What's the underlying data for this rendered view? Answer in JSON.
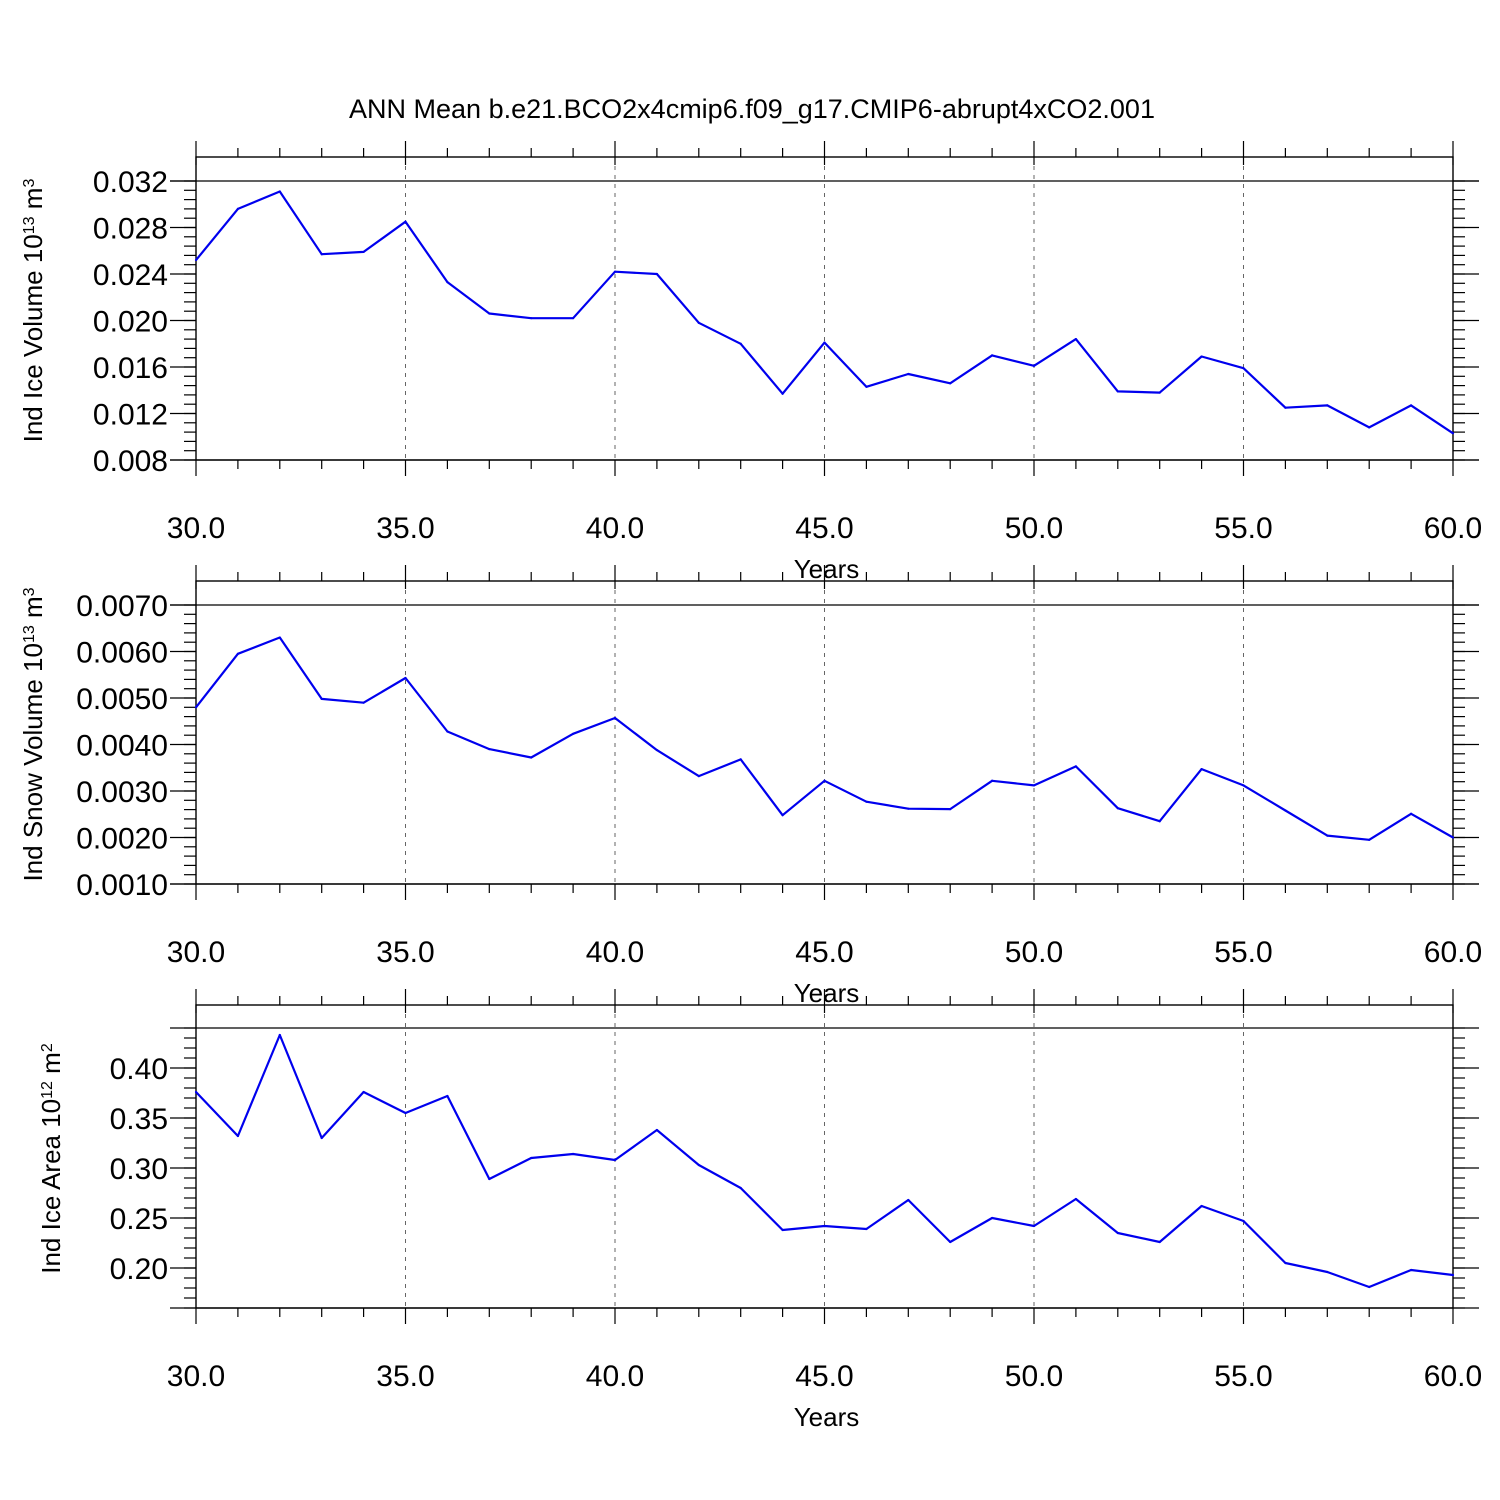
{
  "title": "ANN Mean b.e21.BCO2x4cmip6.f09_g17.CMIP6-abrupt4xCO2.001",
  "line_color": "#0000ee",
  "chart_data": [
    {
      "type": "line",
      "ylabel": "Ind Ice Volume",
      "ylabel_unit_base": "10",
      "ylabel_unit_exp": "13",
      "ylabel_unit_rest": " m",
      "ylabel_unit_exp2": "3",
      "xlabel": "Years",
      "xlim": [
        30,
        60
      ],
      "ylim": [
        0.008,
        0.032
      ],
      "xticks": [
        30,
        35,
        40,
        45,
        50,
        55,
        60
      ],
      "xtick_labels": [
        "30.0",
        "35.0",
        "40.0",
        "45.0",
        "50.0",
        "55.0",
        "60.0"
      ],
      "yticks": [
        0.008,
        0.012,
        0.016,
        0.02,
        0.024,
        0.028,
        0.032
      ],
      "ytick_labels": [
        "0.008",
        "0.012",
        "0.016",
        "0.020",
        "0.024",
        "0.028",
        "0.032"
      ],
      "grid": "vertical-dashed",
      "x": [
        30,
        31,
        32,
        33,
        34,
        35,
        36,
        37,
        38,
        39,
        40,
        41,
        42,
        43,
        44,
        45,
        46,
        47,
        48,
        49,
        50,
        51,
        52,
        53,
        54,
        55,
        56,
        57,
        58,
        59,
        60
      ],
      "values": [
        0.0252,
        0.0296,
        0.0311,
        0.0257,
        0.0259,
        0.0285,
        0.0233,
        0.0206,
        0.0202,
        0.0202,
        0.0242,
        0.024,
        0.0198,
        0.018,
        0.0137,
        0.0181,
        0.0143,
        0.0154,
        0.0146,
        0.017,
        0.0161,
        0.0184,
        0.0139,
        0.0138,
        0.0169,
        0.0159,
        0.0125,
        0.0127,
        0.0108,
        0.0127,
        0.0103
      ]
    },
    {
      "type": "line",
      "ylabel": "Ind Snow Volume",
      "ylabel_unit_base": "10",
      "ylabel_unit_exp": "13",
      "ylabel_unit_rest": " m",
      "ylabel_unit_exp2": "3",
      "xlabel": "Years",
      "xlim": [
        30,
        60
      ],
      "ylim": [
        0.001,
        0.007
      ],
      "xticks": [
        30,
        35,
        40,
        45,
        50,
        55,
        60
      ],
      "xtick_labels": [
        "30.0",
        "35.0",
        "40.0",
        "45.0",
        "50.0",
        "55.0",
        "60.0"
      ],
      "yticks": [
        0.001,
        0.002,
        0.003,
        0.004,
        0.005,
        0.006,
        0.007
      ],
      "ytick_labels": [
        "0.0010",
        "0.0020",
        "0.0030",
        "0.0040",
        "0.0050",
        "0.0060",
        "0.0070"
      ],
      "grid": "vertical-dashed",
      "x": [
        30,
        31,
        32,
        33,
        34,
        35,
        36,
        37,
        38,
        39,
        40,
        41,
        42,
        43,
        44,
        45,
        46,
        47,
        48,
        49,
        50,
        51,
        52,
        53,
        54,
        55,
        56,
        57,
        58,
        59,
        60
      ],
      "values": [
        0.0048,
        0.00595,
        0.0063,
        0.00498,
        0.0049,
        0.00543,
        0.00428,
        0.0039,
        0.00372,
        0.00423,
        0.00457,
        0.00388,
        0.00332,
        0.00368,
        0.00248,
        0.00322,
        0.00277,
        0.00262,
        0.00261,
        0.00322,
        0.00312,
        0.00353,
        0.00263,
        0.00235,
        0.00347,
        0.00312,
        0.00258,
        0.00204,
        0.00195,
        0.00251,
        0.002
      ]
    },
    {
      "type": "line",
      "ylabel": "Ind Ice Area",
      "ylabel_unit_base": "10",
      "ylabel_unit_exp": "12",
      "ylabel_unit_rest": " m",
      "ylabel_unit_exp2": "2",
      "xlabel": "Years",
      "xlim": [
        30,
        60
      ],
      "ylim": [
        0.16,
        0.44
      ],
      "xticks": [
        30,
        35,
        40,
        45,
        50,
        55,
        60
      ],
      "xtick_labels": [
        "30.0",
        "35.0",
        "40.0",
        "45.0",
        "50.0",
        "55.0",
        "60.0"
      ],
      "yticks": [
        0.2,
        0.25,
        0.3,
        0.35,
        0.4
      ],
      "ytick_labels": [
        "0.20",
        "0.25",
        "0.30",
        "0.35",
        "0.40"
      ],
      "grid": "vertical-dashed",
      "x": [
        30,
        31,
        32,
        33,
        34,
        35,
        36,
        37,
        38,
        39,
        40,
        41,
        42,
        43,
        44,
        45,
        46,
        47,
        48,
        49,
        50,
        51,
        52,
        53,
        54,
        55,
        56,
        57,
        58,
        59,
        60
      ],
      "values": [
        0.376,
        0.332,
        0.433,
        0.33,
        0.376,
        0.355,
        0.372,
        0.289,
        0.31,
        0.314,
        0.308,
        0.338,
        0.303,
        0.28,
        0.238,
        0.242,
        0.239,
        0.268,
        0.226,
        0.25,
        0.242,
        0.269,
        0.235,
        0.226,
        0.262,
        0.247,
        0.205,
        0.196,
        0.181,
        0.198,
        0.193
      ]
    }
  ]
}
